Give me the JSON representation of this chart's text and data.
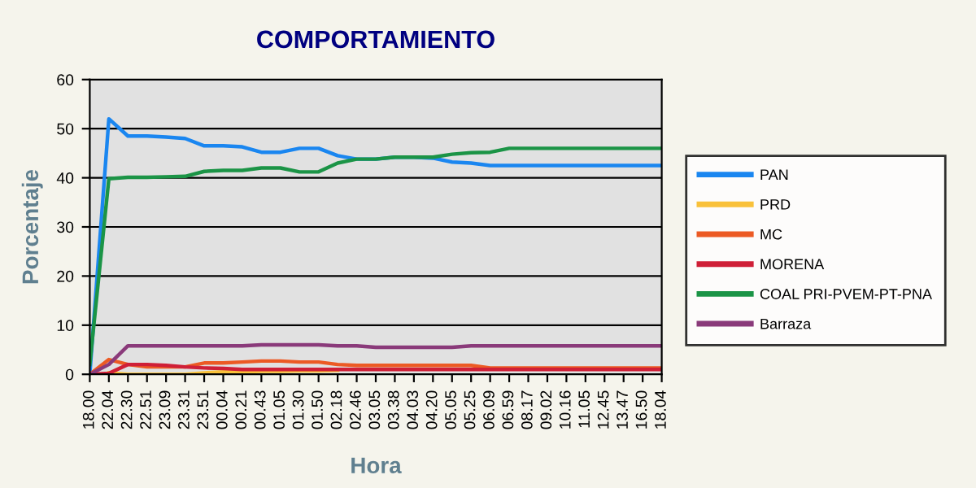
{
  "chart_data": {
    "type": "line",
    "title": "COMPORTAMIENTO",
    "xlabel": "Hora",
    "ylabel": "Porcentaje",
    "categories": [
      "18.00",
      "22.04",
      "22.30",
      "22.51",
      "23.09",
      "23.31",
      "23.51",
      "00.04",
      "00.21",
      "00.43",
      "01.05",
      "01.30",
      "01.50",
      "02.18",
      "02.46",
      "03.05",
      "03.38",
      "04.03",
      "04.20",
      "05.05",
      "05.25",
      "06.09",
      "06.59",
      "08.17",
      "09.02",
      "10.16",
      "11.05",
      "12.45",
      "13.47",
      "16.50",
      "18.04"
    ],
    "series": [
      {
        "name": "PAN",
        "color": "#1a86f0",
        "values": [
          0,
          52,
          48.5,
          48.5,
          48.3,
          48,
          46.5,
          46.5,
          46.3,
          45.2,
          45.2,
          46,
          46,
          44.5,
          43.8,
          43.8,
          44.2,
          44.2,
          44,
          43.2,
          43,
          42.5,
          42.5,
          42.5,
          42.5,
          42.5,
          42.5,
          42.5,
          42.5,
          42.5,
          42.5
        ]
      },
      {
        "name": "PRD",
        "color": "#f9c13a",
        "values": [
          null,
          0.3,
          0,
          0,
          0,
          0,
          0.3,
          0.5,
          0.5,
          0.6,
          0.6,
          0.7,
          0.7,
          0.8,
          null,
          null,
          null,
          null,
          null,
          null,
          null,
          null,
          null,
          null,
          null,
          null,
          null,
          null,
          null,
          null,
          null
        ]
      },
      {
        "name": "MC",
        "color": "#ec5a24",
        "values": [
          0,
          3,
          2,
          1.5,
          1.5,
          1.5,
          2.3,
          2.3,
          2.5,
          2.7,
          2.7,
          2.5,
          2.5,
          2,
          1.8,
          1.8,
          1.8,
          1.8,
          1.8,
          1.8,
          1.8,
          1.3,
          1.3,
          1.3,
          1.3,
          1.3,
          1.3,
          1.3,
          1.3,
          1.3,
          1.3
        ]
      },
      {
        "name": "MORENA",
        "color": "#cf1f37",
        "values": [
          0,
          0.2,
          2,
          2,
          1.8,
          1.5,
          1.3,
          1.2,
          1,
          1,
          1,
          1,
          1,
          1,
          1,
          1,
          1,
          1,
          1,
          1,
          1,
          1,
          1,
          1,
          1,
          1,
          1,
          1,
          1,
          1,
          1
        ]
      },
      {
        "name": "COAL PRI-PVEM-PT-PNA",
        "color": "#1b9446",
        "values": [
          2,
          39.8,
          40.1,
          40.1,
          40.2,
          40.3,
          41.3,
          41.5,
          41.5,
          42,
          42,
          41.2,
          41.2,
          43,
          43.8,
          43.8,
          44.2,
          44.2,
          44.2,
          44.8,
          45.1,
          45.2,
          46,
          46,
          46,
          46,
          46,
          46,
          46,
          46,
          46
        ]
      },
      {
        "name": "Barraza",
        "color": "#8a3a7a",
        "values": [
          0,
          2,
          5.8,
          5.8,
          5.8,
          5.8,
          5.8,
          5.8,
          5.8,
          6,
          6,
          6,
          6,
          5.8,
          5.8,
          5.5,
          5.5,
          5.5,
          5.5,
          5.5,
          5.8,
          5.8,
          5.8,
          5.8,
          5.8,
          5.8,
          5.8,
          5.8,
          5.8,
          5.8,
          5.8
        ]
      }
    ],
    "ylim": [
      0,
      60
    ],
    "yticks": [
      0,
      10,
      20,
      30,
      40,
      50,
      60
    ],
    "grid": "y",
    "legend": "right",
    "marker": "none",
    "line_style": "solid"
  }
}
